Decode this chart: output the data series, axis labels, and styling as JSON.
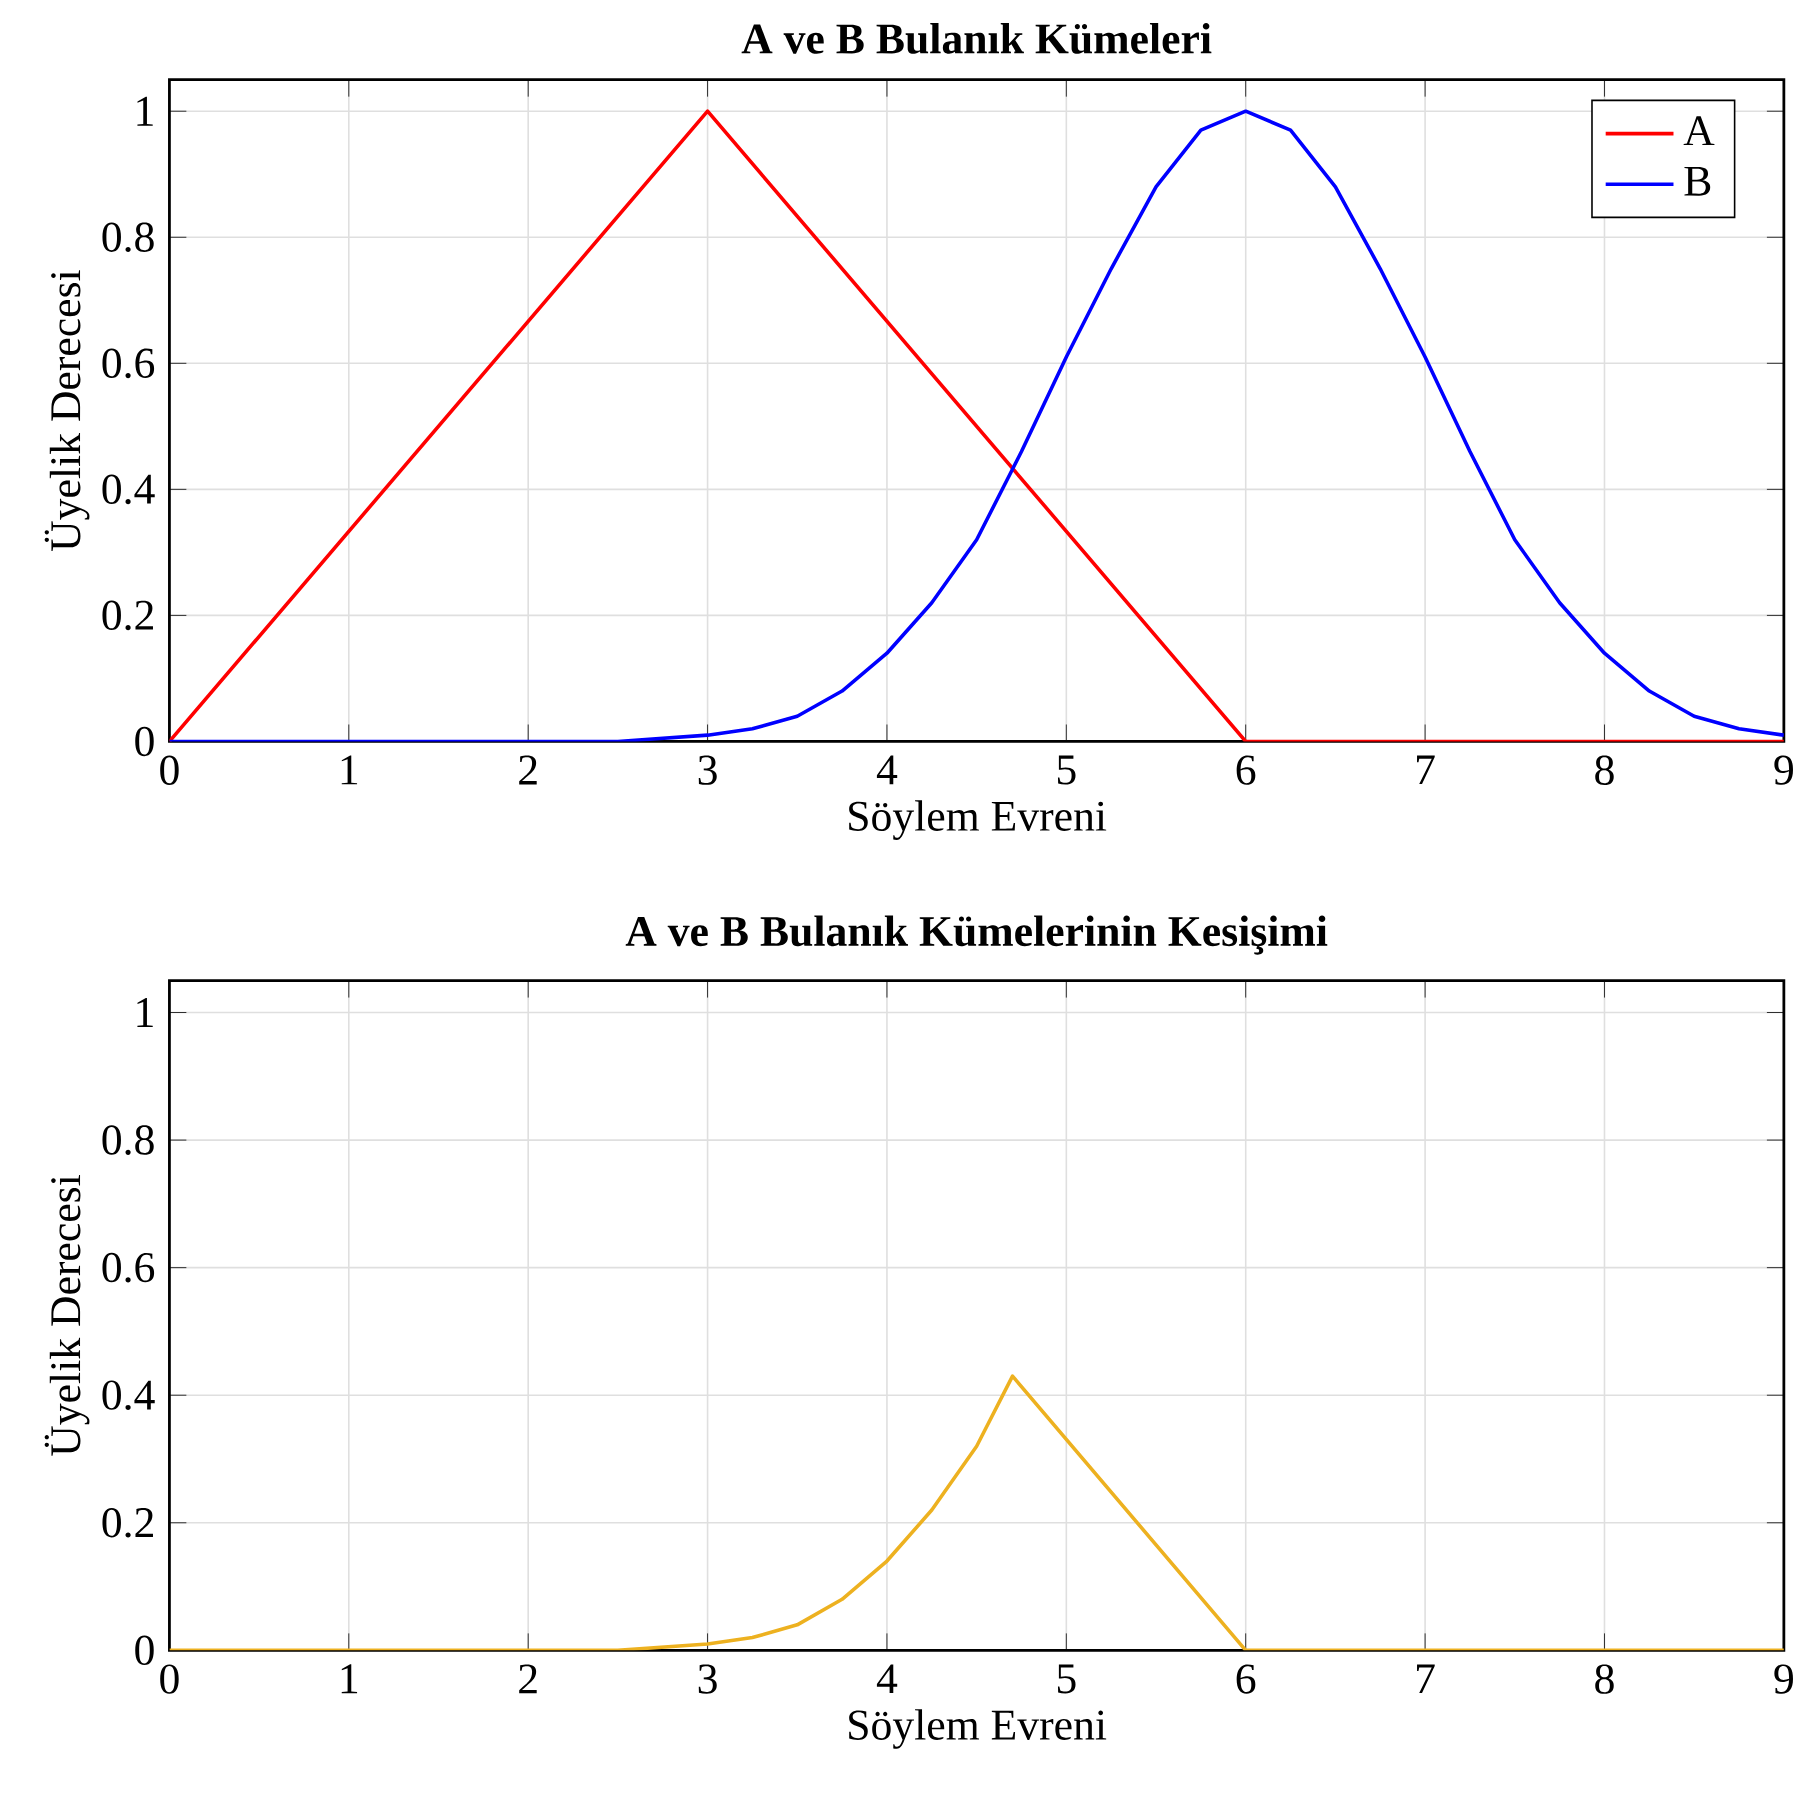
{
  "chart_data": [
    {
      "type": "line",
      "title": "A ve B Bulanık Kümeleri",
      "xlabel": "Söylem Evreni",
      "ylabel": "Üyelik Derecesi",
      "xlim": [
        0,
        9
      ],
      "ylim": [
        0,
        1.05
      ],
      "xticks": [
        0,
        1,
        2,
        3,
        4,
        5,
        6,
        7,
        8,
        9
      ],
      "yticks": [
        0,
        0.2,
        0.4,
        0.6,
        0.8,
        1
      ],
      "grid": true,
      "legend": "top right",
      "series": [
        {
          "name": "A",
          "color": "#ff0000",
          "x": [
            0,
            3,
            6,
            9
          ],
          "values": [
            0,
            1,
            0,
            0
          ]
        },
        {
          "name": "B",
          "color": "#0000ff",
          "x": [
            0,
            1,
            2,
            2.5,
            3,
            3.25,
            3.5,
            3.75,
            4,
            4.25,
            4.5,
            4.75,
            5,
            5.25,
            5.5,
            5.75,
            6,
            6.25,
            6.5,
            6.75,
            7,
            7.25,
            7.5,
            7.75,
            8,
            8.25,
            8.5,
            8.75,
            9
          ],
          "values": [
            0,
            0,
            0,
            0,
            0.01,
            0.02,
            0.04,
            0.08,
            0.14,
            0.22,
            0.32,
            0.46,
            0.61,
            0.75,
            0.88,
            0.97,
            1,
            0.97,
            0.88,
            0.75,
            0.61,
            0.46,
            0.32,
            0.22,
            0.14,
            0.08,
            0.04,
            0.02,
            0.01
          ]
        }
      ]
    },
    {
      "type": "line",
      "title": "A ve B Bulanık Kümelerinin Kesişimi",
      "xlabel": "Söylem Evreni",
      "ylabel": "Üyelik Derecesi",
      "xlim": [
        0,
        9
      ],
      "ylim": [
        0,
        1.05
      ],
      "xticks": [
        0,
        1,
        2,
        3,
        4,
        5,
        6,
        7,
        8,
        9
      ],
      "yticks": [
        0,
        0.2,
        0.4,
        0.6,
        0.8,
        1
      ],
      "grid": true,
      "series": [
        {
          "color": "#edb120",
          "x": [
            0,
            2,
            2.5,
            3,
            3.25,
            3.5,
            3.75,
            4,
            4.25,
            4.5,
            4.7,
            6,
            9
          ],
          "values": [
            0,
            0,
            0,
            0.01,
            0.02,
            0.04,
            0.08,
            0.14,
            0.22,
            0.32,
            0.43,
            0,
            0
          ]
        }
      ]
    }
  ]
}
